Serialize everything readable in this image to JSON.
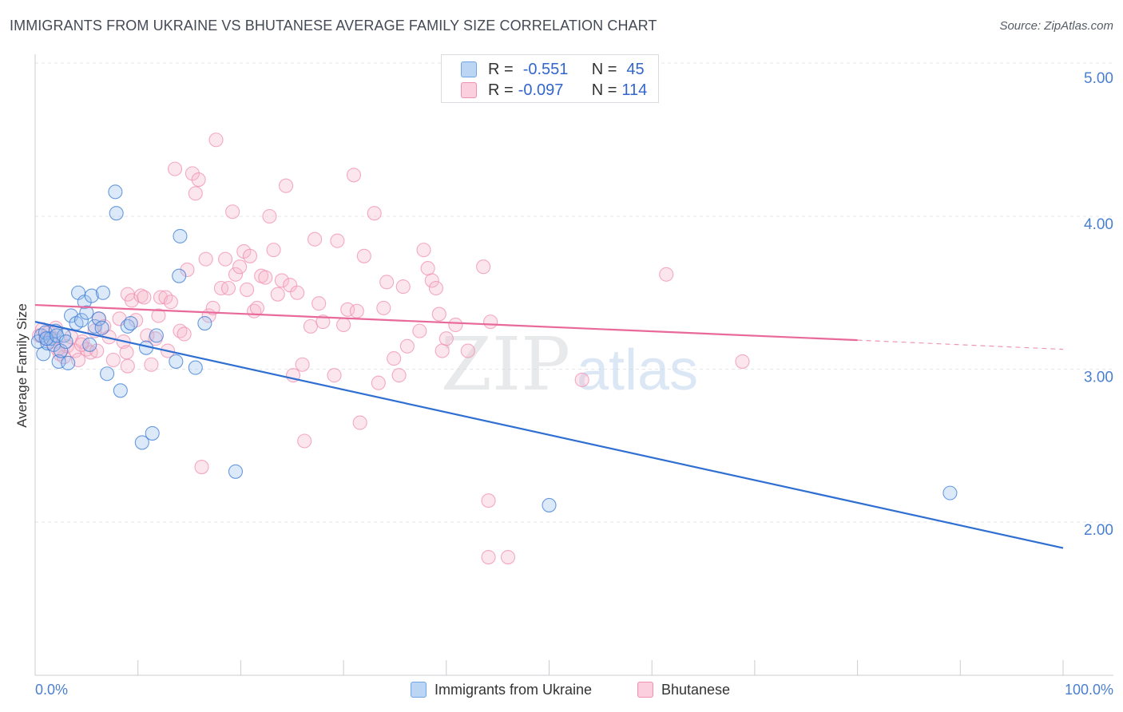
{
  "title": "IMMIGRANTS FROM UKRAINE VS BHUTANESE AVERAGE FAMILY SIZE CORRELATION CHART",
  "source": "Source: ZipAtlas.com",
  "watermark": {
    "zip": "ZIP",
    "atlas": "atlas"
  },
  "legend": {
    "r_label": "R =",
    "n_label": "N =",
    "rows": [
      {
        "r": "-0.551",
        "n": "45",
        "color": "#6fa4e8",
        "fill": "#bcd5f5"
      },
      {
        "r": "-0.097",
        "n": "114",
        "color": "#f08fb0",
        "fill": "#fbcfdd"
      }
    ]
  },
  "colors": {
    "blue": "#3a7bd5",
    "blue_line": "#2f6fd2",
    "pink": "#f08fb0",
    "pink_line": "#e8699a",
    "tick_label": "#4a7fcf",
    "grid": "#e3e6ea"
  },
  "chart_data": {
    "type": "scatter",
    "xlabel": "",
    "ylabel": "Average Family Size",
    "xlim": [
      0,
      100
    ],
    "ylim": [
      1.0,
      5.1
    ],
    "x_tick_labels": [
      "0.0%",
      "100.0%"
    ],
    "y_ticks": [
      2.0,
      3.0,
      4.0,
      5.0
    ],
    "y_tick_labels": [
      "2.00",
      "3.00",
      "4.00",
      "5.00"
    ],
    "grid": true,
    "legend_position": "top-center",
    "series": [
      {
        "name": "Immigrants from Ukraine",
        "color": "#3a7bd5",
        "trend": {
          "x": [
            0,
            100
          ],
          "y": [
            3.31,
            1.83
          ]
        },
        "points": [
          [
            0.3,
            3.18
          ],
          [
            0.6,
            3.22
          ],
          [
            0.8,
            3.1
          ],
          [
            1.0,
            3.24
          ],
          [
            1.2,
            3.17
          ],
          [
            1.5,
            3.2
          ],
          [
            1.8,
            3.16
          ],
          [
            2.0,
            3.25
          ],
          [
            2.3,
            3.05
          ],
          [
            2.5,
            3.12
          ],
          [
            2.8,
            3.22
          ],
          [
            3.2,
            3.04
          ],
          [
            3.5,
            3.35
          ],
          [
            4.0,
            3.3
          ],
          [
            4.2,
            3.5
          ],
          [
            4.5,
            3.32
          ],
          [
            4.8,
            3.44
          ],
          [
            5.0,
            3.37
          ],
          [
            5.3,
            3.16
          ],
          [
            5.5,
            3.48
          ],
          [
            5.8,
            3.28
          ],
          [
            6.2,
            3.33
          ],
          [
            6.5,
            3.27
          ],
          [
            6.6,
            3.5
          ],
          [
            7.0,
            2.97
          ],
          [
            7.8,
            4.16
          ],
          [
            7.9,
            4.02
          ],
          [
            8.3,
            2.86
          ],
          [
            9.0,
            3.28
          ],
          [
            9.3,
            3.3
          ],
          [
            10.4,
            2.52
          ],
          [
            10.8,
            3.14
          ],
          [
            11.4,
            2.58
          ],
          [
            11.8,
            3.22
          ],
          [
            13.7,
            3.05
          ],
          [
            14.0,
            3.61
          ],
          [
            14.1,
            3.87
          ],
          [
            15.6,
            3.01
          ],
          [
            16.5,
            3.3
          ],
          [
            19.5,
            2.33
          ],
          [
            50.0,
            2.11
          ],
          [
            89.0,
            2.19
          ],
          [
            1.1,
            3.2
          ],
          [
            2.1,
            3.22
          ],
          [
            3.0,
            3.18
          ]
        ]
      },
      {
        "name": "Bhutanese",
        "color": "#f08fb0",
        "trend": {
          "x": [
            0,
            80
          ],
          "y": [
            3.42,
            3.19
          ],
          "dashed_to": {
            "x": 100,
            "y": 3.13
          }
        },
        "points": [
          [
            0.4,
            3.22
          ],
          [
            0.7,
            3.26
          ],
          [
            1.0,
            3.2
          ],
          [
            1.3,
            3.24
          ],
          [
            1.6,
            3.18
          ],
          [
            2.0,
            3.27
          ],
          [
            2.4,
            3.1
          ],
          [
            2.8,
            3.08
          ],
          [
            3.1,
            3.15
          ],
          [
            3.5,
            3.21
          ],
          [
            3.9,
            3.12
          ],
          [
            4.2,
            3.06
          ],
          [
            4.6,
            3.18
          ],
          [
            5.0,
            3.13
          ],
          [
            5.4,
            3.11
          ],
          [
            5.8,
            3.25
          ],
          [
            6.2,
            3.33
          ],
          [
            6.7,
            3.28
          ],
          [
            7.2,
            3.21
          ],
          [
            7.6,
            3.06
          ],
          [
            8.2,
            3.33
          ],
          [
            8.6,
            3.18
          ],
          [
            9.0,
            3.02
          ],
          [
            9.0,
            3.49
          ],
          [
            9.4,
            3.45
          ],
          [
            9.8,
            3.32
          ],
          [
            10.3,
            3.48
          ],
          [
            10.6,
            3.47
          ],
          [
            10.9,
            3.22
          ],
          [
            11.3,
            3.03
          ],
          [
            11.7,
            3.2
          ],
          [
            12.0,
            3.35
          ],
          [
            12.2,
            3.47
          ],
          [
            12.7,
            3.47
          ],
          [
            12.9,
            3.12
          ],
          [
            13.2,
            3.44
          ],
          [
            13.6,
            4.31
          ],
          [
            14.1,
            3.25
          ],
          [
            14.5,
            3.23
          ],
          [
            14.8,
            3.65
          ],
          [
            15.3,
            4.28
          ],
          [
            15.6,
            4.15
          ],
          [
            15.9,
            4.24
          ],
          [
            16.2,
            2.36
          ],
          [
            16.6,
            3.72
          ],
          [
            16.9,
            3.35
          ],
          [
            17.3,
            3.4
          ],
          [
            17.6,
            4.5
          ],
          [
            18.1,
            3.53
          ],
          [
            18.5,
            3.72
          ],
          [
            18.8,
            3.53
          ],
          [
            19.2,
            4.03
          ],
          [
            19.5,
            3.62
          ],
          [
            19.9,
            3.67
          ],
          [
            20.3,
            3.77
          ],
          [
            20.6,
            3.52
          ],
          [
            20.9,
            3.74
          ],
          [
            21.3,
            3.38
          ],
          [
            21.6,
            3.4
          ],
          [
            22.0,
            3.61
          ],
          [
            22.4,
            3.6
          ],
          [
            22.8,
            4.0
          ],
          [
            23.2,
            3.78
          ],
          [
            23.6,
            3.49
          ],
          [
            24.0,
            3.58
          ],
          [
            24.4,
            4.2
          ],
          [
            24.8,
            3.55
          ],
          [
            25.1,
            2.96
          ],
          [
            25.5,
            3.5
          ],
          [
            26.0,
            3.03
          ],
          [
            26.2,
            2.53
          ],
          [
            26.8,
            3.28
          ],
          [
            27.2,
            3.85
          ],
          [
            27.6,
            3.43
          ],
          [
            28.0,
            3.31
          ],
          [
            29.1,
            2.96
          ],
          [
            29.4,
            3.84
          ],
          [
            30.0,
            3.29
          ],
          [
            30.4,
            3.39
          ],
          [
            31.0,
            4.27
          ],
          [
            31.3,
            3.38
          ],
          [
            31.6,
            2.65
          ],
          [
            32.0,
            3.74
          ],
          [
            33.0,
            4.02
          ],
          [
            33.4,
            2.91
          ],
          [
            33.9,
            3.4
          ],
          [
            34.2,
            3.57
          ],
          [
            34.9,
            3.07
          ],
          [
            35.4,
            2.96
          ],
          [
            35.8,
            3.54
          ],
          [
            36.2,
            3.15
          ],
          [
            37.4,
            3.25
          ],
          [
            37.8,
            3.78
          ],
          [
            38.2,
            3.66
          ],
          [
            38.6,
            3.58
          ],
          [
            39.0,
            3.53
          ],
          [
            39.3,
            3.36
          ],
          [
            39.6,
            3.12
          ],
          [
            40.0,
            3.2
          ],
          [
            40.9,
            3.29
          ],
          [
            42.1,
            3.12
          ],
          [
            43.6,
            3.67
          ],
          [
            44.1,
            2.14
          ],
          [
            44.1,
            1.77
          ],
          [
            44.3,
            3.31
          ],
          [
            46.0,
            1.77
          ],
          [
            53.2,
            2.93
          ],
          [
            61.4,
            3.62
          ],
          [
            68.8,
            3.05
          ],
          [
            2.2,
            3.13
          ],
          [
            4.5,
            3.16
          ],
          [
            6.0,
            3.12
          ],
          [
            8.9,
            3.11
          ],
          [
            1.8,
            3.2
          ]
        ]
      }
    ]
  },
  "bottom_legend": [
    "Immigrants from Ukraine",
    "Bhutanese"
  ]
}
